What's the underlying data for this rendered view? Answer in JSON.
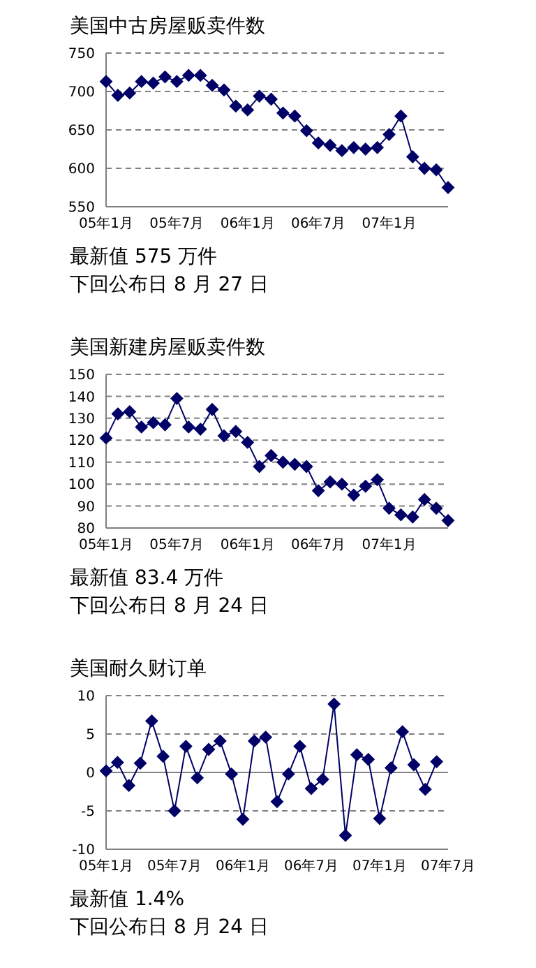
{
  "chart_data": [
    {
      "type": "line",
      "title": "美国中古房屋贩卖件数",
      "categories": [
        "05年1月",
        null,
        null,
        null,
        null,
        null,
        "05年7月",
        null,
        null,
        null,
        null,
        null,
        "06年1月",
        null,
        null,
        null,
        null,
        null,
        "06年7月",
        null,
        null,
        null,
        null,
        null,
        "07年1月",
        null,
        null,
        null,
        null,
        null
      ],
      "series": [
        {
          "color": "#000066",
          "values": [
            713,
            695,
            698,
            713,
            711,
            719,
            713,
            721,
            721,
            708,
            702,
            681,
            676,
            694,
            690,
            672,
            668,
            649,
            633,
            630,
            623,
            627,
            625,
            627,
            644,
            668,
            615,
            600,
            598,
            575
          ]
        }
      ],
      "ylim": [
        550,
        750
      ],
      "yticks": [
        550,
        600,
        650,
        700,
        750
      ],
      "grid": "y",
      "marker": "diamond",
      "annotations": [
        "最新值 575 万件",
        "下回公布日 8 月 27 日"
      ]
    },
    {
      "type": "line",
      "title": "美国新建房屋贩卖件数",
      "categories": [
        "05年1月",
        null,
        null,
        null,
        null,
        null,
        "05年7月",
        null,
        null,
        null,
        null,
        null,
        "06年1月",
        null,
        null,
        null,
        null,
        null,
        "06年7月",
        null,
        null,
        null,
        null,
        null,
        "07年1月",
        null,
        null,
        null,
        null,
        null
      ],
      "series": [
        {
          "color": "#000066",
          "values": [
            121,
            132,
            133,
            126,
            128,
            127,
            139,
            126,
            125,
            134,
            122,
            124,
            119,
            108,
            113,
            110,
            109,
            108,
            97,
            101,
            100,
            95,
            99,
            102,
            89,
            86,
            85,
            93,
            89,
            83.4
          ]
        }
      ],
      "ylim": [
        80,
        150
      ],
      "yticks": [
        80,
        90,
        100,
        110,
        120,
        130,
        140,
        150
      ],
      "grid": "y",
      "marker": "diamond",
      "annotations": [
        "最新值 83.4 万件",
        "下回公布日 8 月 24 日"
      ]
    },
    {
      "type": "line",
      "title": "美国耐久财订单",
      "categories": [
        "05年1月",
        null,
        null,
        null,
        null,
        null,
        "05年7月",
        null,
        null,
        null,
        null,
        null,
        "06年1月",
        null,
        null,
        null,
        null,
        null,
        "06年7月",
        null,
        null,
        null,
        null,
        null,
        "07年1月",
        null,
        null,
        null,
        null,
        null,
        "07年7月"
      ],
      "series": [
        {
          "color": "#000066",
          "values": [
            0.2,
            1.3,
            -1.7,
            1.2,
            6.7,
            2.1,
            -5.0,
            3.4,
            -0.7,
            3.0,
            4.1,
            -0.2,
            -6.1,
            4.1,
            4.6,
            -3.8,
            -0.2,
            3.4,
            -2.1,
            -0.9,
            8.9,
            -8.2,
            2.3,
            1.7,
            -6.0,
            0.6,
            5.3,
            1.0,
            -2.2,
            1.4,
            null
          ]
        }
      ],
      "ylim": [
        -10,
        10
      ],
      "yticks": [
        -10,
        -5,
        0,
        5,
        10
      ],
      "grid": "y",
      "marker": "diamond",
      "ref_lines": [
        {
          "axis": "y",
          "value": 0,
          "color": "#808080"
        }
      ],
      "annotations": [
        "最新值 1.4%",
        "下回公布日 8 月 24 日"
      ]
    }
  ]
}
